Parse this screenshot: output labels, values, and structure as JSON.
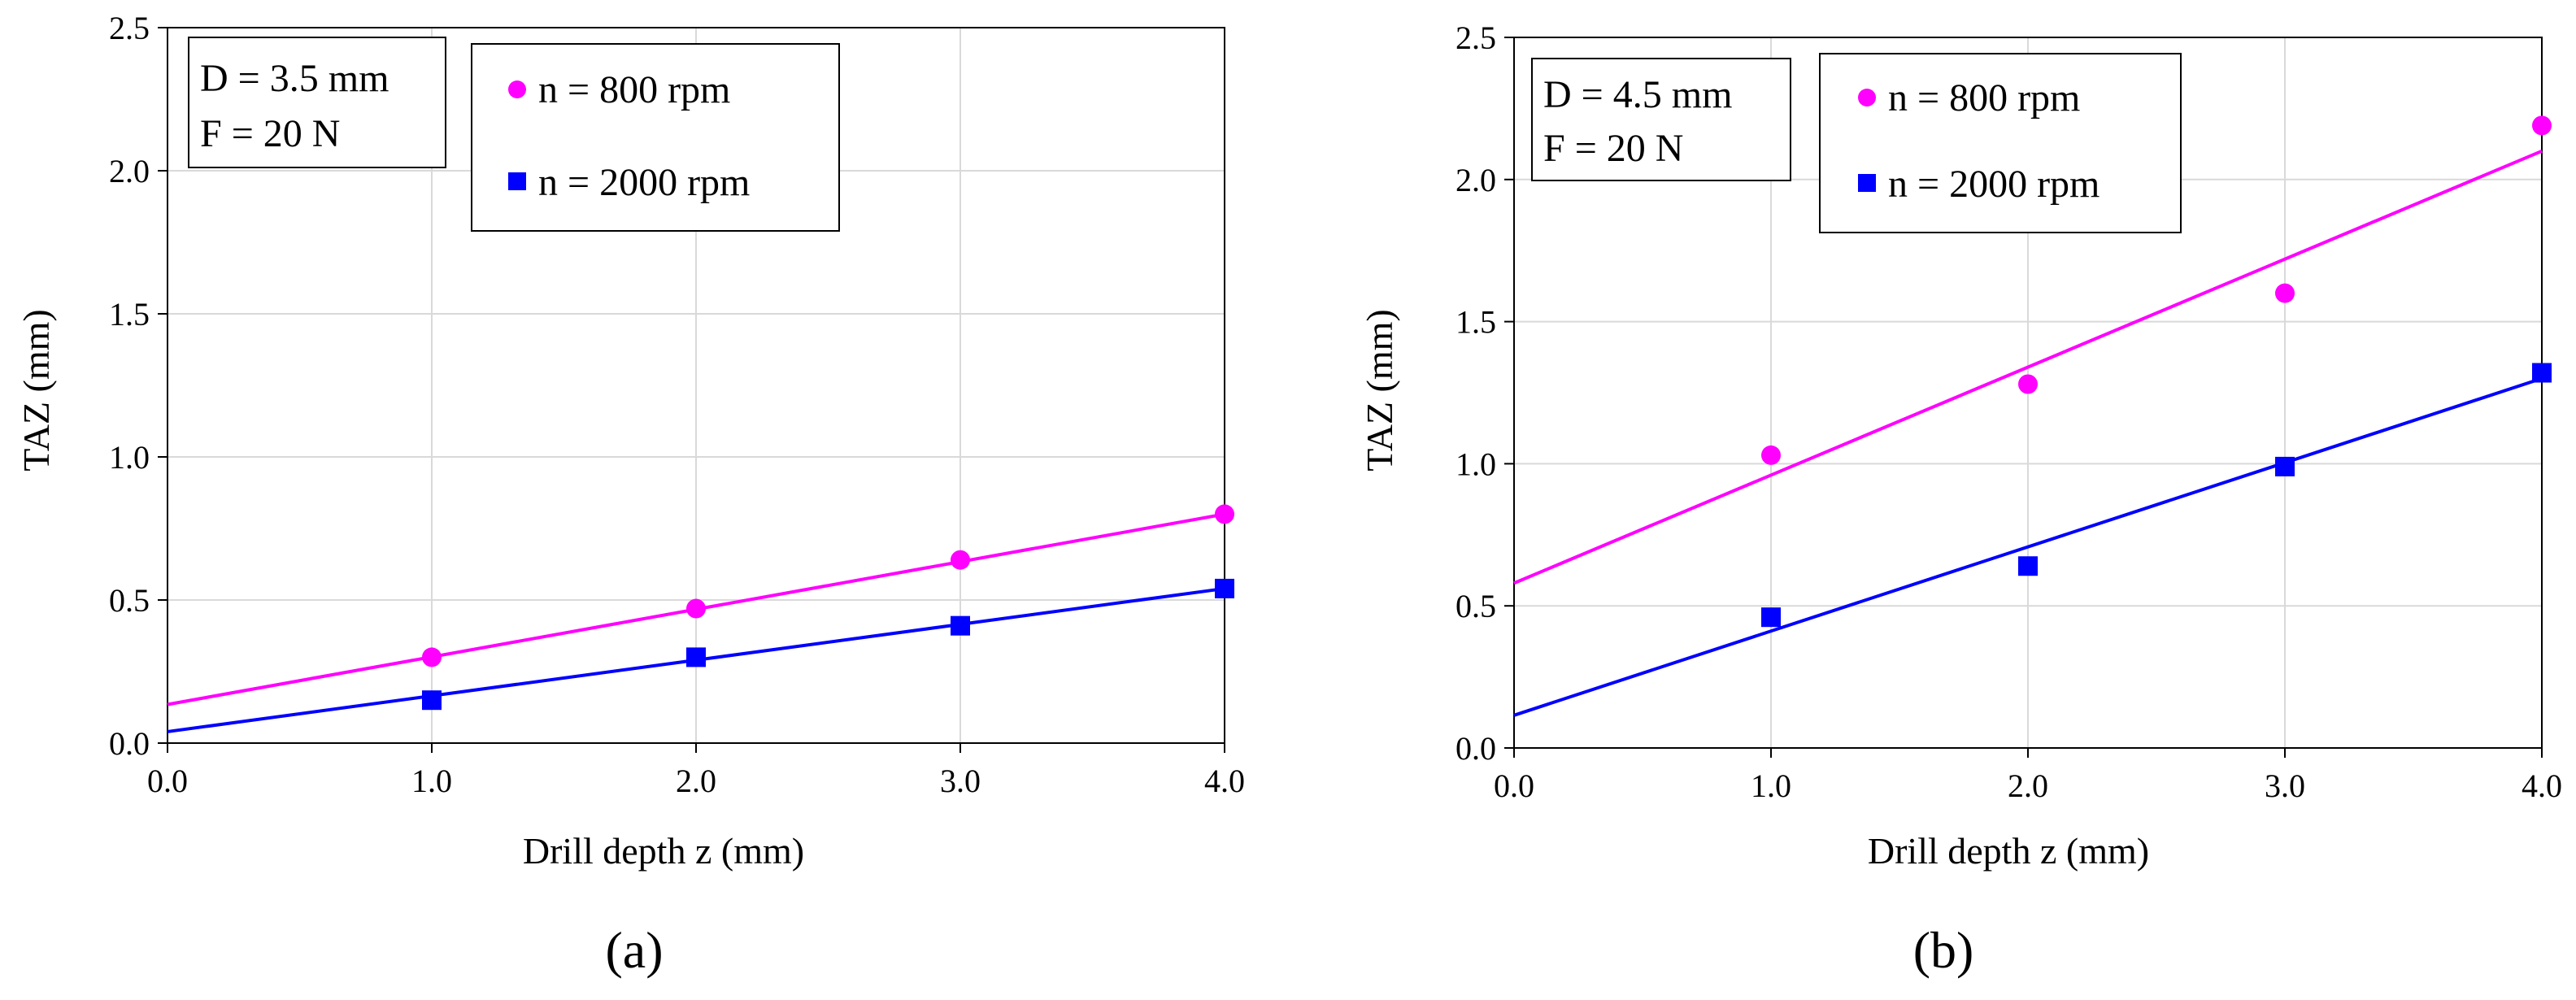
{
  "colors": {
    "series_800": "#ff00ff",
    "series_2000": "#0000ff",
    "grid": "#d9d9d9",
    "axis": "#000000"
  },
  "chart_data": [
    {
      "type": "scatter",
      "panel_label": "(a)",
      "xlabel": "Drill depth z (mm)",
      "ylabel": "TAZ (mm)",
      "xlim": [
        0,
        4
      ],
      "ylim": [
        0,
        2.5
      ],
      "x_ticks": [
        "0.0",
        "1.0",
        "2.0",
        "3.0",
        "4.0"
      ],
      "y_ticks": [
        "0.0",
        "0.5",
        "1.0",
        "1.5",
        "2.0",
        "2.5"
      ],
      "grid": true,
      "annotation": [
        "D = 3.5 mm",
        "F = 20 N"
      ],
      "legend": [
        "n = 800 rpm",
        "n = 2000 rpm"
      ],
      "series": [
        {
          "name": "n = 800 rpm",
          "marker": "circle",
          "color": "#ff00ff",
          "x": [
            1,
            2,
            3,
            4
          ],
          "y": [
            0.3,
            0.47,
            0.64,
            0.8
          ],
          "trendline": {
            "x": [
              0,
              4
            ],
            "y": [
              0.135,
              0.8
            ]
          }
        },
        {
          "name": "n = 2000 rpm",
          "marker": "square",
          "color": "#0000ff",
          "x": [
            1,
            2,
            3,
            4
          ],
          "y": [
            0.15,
            0.3,
            0.41,
            0.54
          ],
          "trendline": {
            "x": [
              0,
              4
            ],
            "y": [
              0.04,
              0.54
            ]
          }
        }
      ]
    },
    {
      "type": "scatter",
      "panel_label": "(b)",
      "xlabel": "Drill depth z (mm)",
      "ylabel": "TAZ (mm)",
      "xlim": [
        0,
        4
      ],
      "ylim": [
        0,
        2.5
      ],
      "x_ticks": [
        "0.0",
        "1.0",
        "2.0",
        "3.0",
        "4.0"
      ],
      "y_ticks": [
        "0.0",
        "0.5",
        "1.0",
        "1.5",
        "2.0",
        "2.5"
      ],
      "grid": true,
      "annotation": [
        "D = 4.5 mm",
        "F = 20 N"
      ],
      "legend": [
        "n = 800 rpm",
        "n = 2000 rpm"
      ],
      "series": [
        {
          "name": "n = 800 rpm",
          "marker": "circle",
          "color": "#ff00ff",
          "x": [
            1,
            2,
            3,
            4
          ],
          "y": [
            1.03,
            1.28,
            1.6,
            2.19
          ],
          "trendline": {
            "x": [
              0,
              4
            ],
            "y": [
              0.58,
              2.1
            ]
          }
        },
        {
          "name": "n = 2000 rpm",
          "marker": "square",
          "color": "#0000ff",
          "x": [
            1,
            2,
            3,
            4
          ],
          "y": [
            0.46,
            0.64,
            0.99,
            1.32
          ],
          "trendline": {
            "x": [
              0,
              4
            ],
            "y": [
              0.115,
              1.3
            ]
          }
        }
      ]
    }
  ]
}
